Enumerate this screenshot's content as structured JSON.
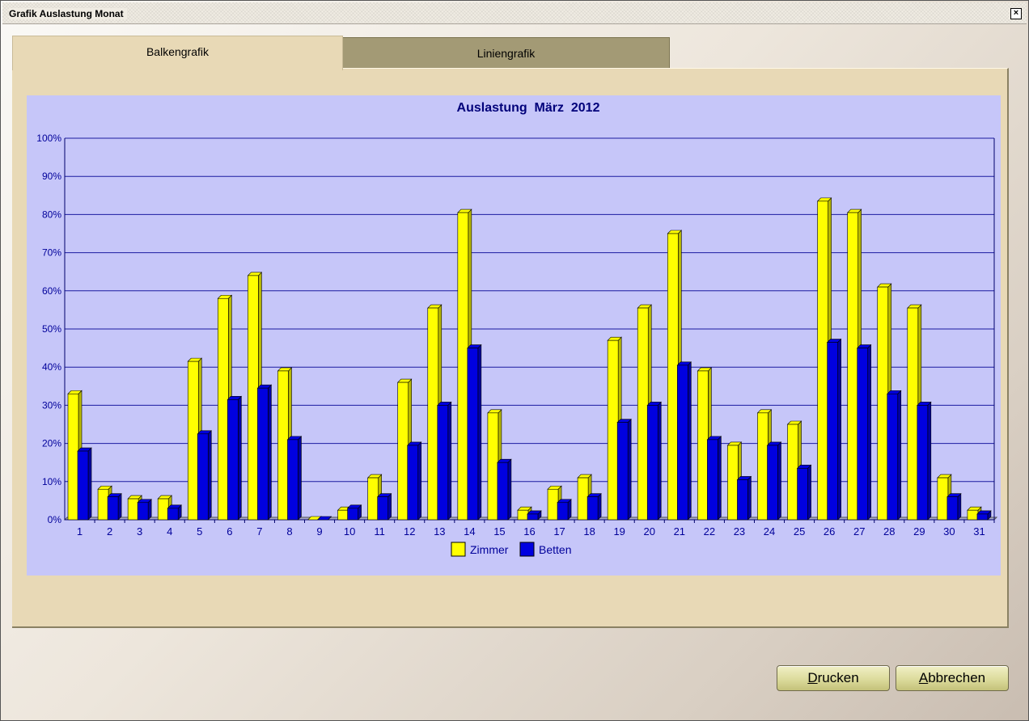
{
  "window": {
    "title": "Grafik Auslastung Monat",
    "close_symbol": "×"
  },
  "tabs": [
    {
      "label": "Balkengrafik"
    },
    {
      "label": "Liniengrafik"
    }
  ],
  "buttons": {
    "print": {
      "mnemonic": "D",
      "rest": "rucken"
    },
    "cancel": {
      "mnemonic": "A",
      "rest": "bbrechen"
    }
  },
  "colors": {
    "zimmer": "#ffff00",
    "betten": "#0000e0",
    "plot_bg": "#c6c6f9",
    "grid": "#1a1aa0"
  },
  "chart_data": {
    "type": "bar",
    "title": "Auslastung  März  2012",
    "categories": [
      "1",
      "2",
      "3",
      "4",
      "5",
      "6",
      "7",
      "8",
      "9",
      "10",
      "11",
      "12",
      "13",
      "14",
      "15",
      "16",
      "17",
      "18",
      "19",
      "20",
      "21",
      "22",
      "23",
      "24",
      "25",
      "26",
      "27",
      "28",
      "29",
      "30",
      "31"
    ],
    "series": [
      {
        "name": "Zimmer",
        "values": [
          33,
          8,
          5.5,
          5.5,
          41.5,
          58,
          64,
          39,
          0,
          2.5,
          11,
          36,
          55.5,
          80.5,
          28,
          2.5,
          8,
          11,
          47,
          55.5,
          75,
          39,
          19.5,
          28,
          25,
          83.5,
          80.5,
          61,
          55.5,
          11,
          2.5
        ]
      },
      {
        "name": "Betten",
        "values": [
          18,
          6,
          4.5,
          3,
          22.5,
          31.5,
          34.5,
          21,
          0,
          3,
          6,
          19.5,
          30,
          45,
          15,
          1.5,
          4.5,
          6,
          25.5,
          30,
          40.5,
          21,
          10.5,
          19.5,
          13.5,
          46.5,
          45,
          33,
          30,
          6,
          1.5
        ]
      }
    ],
    "yticks": [
      "0%",
      "10%",
      "20%",
      "30%",
      "40%",
      "50%",
      "60%",
      "70%",
      "80%",
      "90%",
      "100%"
    ],
    "ylim": [
      0,
      100
    ],
    "grid": true,
    "legend": "bottom-center"
  }
}
